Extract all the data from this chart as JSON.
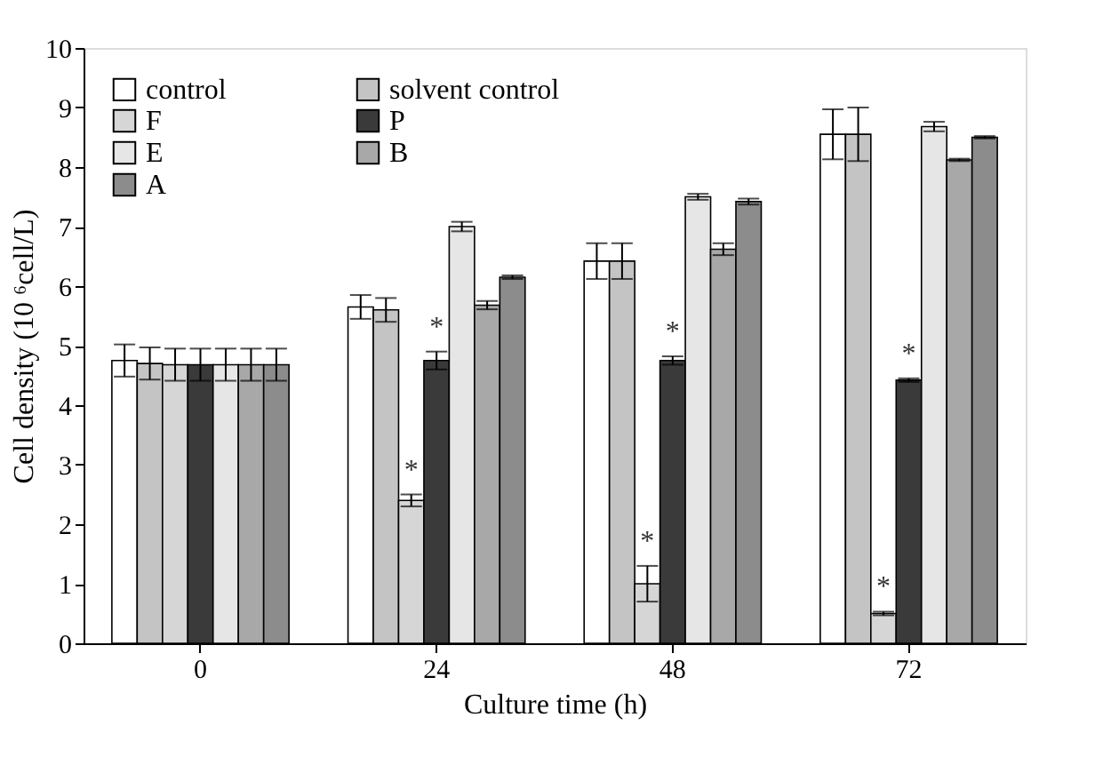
{
  "chart_data": {
    "type": "bar",
    "xlabel": "Culture time (h)",
    "ylabel": "Cell density (10 ⁶cell/L)",
    "categories": [
      "0",
      "24",
      "48",
      "72"
    ],
    "series": [
      {
        "name": "control",
        "color": "#ffffff",
        "values": [
          4.75,
          5.65,
          6.42,
          8.55
        ],
        "errors": [
          0.27,
          0.2,
          0.3,
          0.42
        ]
      },
      {
        "name": "solvent control",
        "color": "#c4c4c4",
        "values": [
          4.7,
          5.6,
          6.42,
          8.55
        ],
        "errors": [
          0.27,
          0.2,
          0.3,
          0.45
        ]
      },
      {
        "name": "F",
        "color": "#d6d6d6",
        "values": [
          4.68,
          2.4,
          1.0,
          0.5
        ],
        "errors": [
          0.27,
          0.1,
          0.3,
          0.03
        ],
        "value_labels": [
          null,
          "*",
          "*",
          "*"
        ]
      },
      {
        "name": "P",
        "color": "#3a3a3a",
        "values": [
          4.68,
          4.75,
          4.75,
          4.42
        ],
        "errors": [
          0.27,
          0.15,
          0.07,
          0.03
        ],
        "value_labels": [
          null,
          "*",
          "*",
          "*"
        ]
      },
      {
        "name": "E",
        "color": "#e6e6e6",
        "values": [
          4.68,
          7.0,
          7.5,
          8.68
        ],
        "errors": [
          0.27,
          0.08,
          0.05,
          0.08
        ]
      },
      {
        "name": "B",
        "color": "#a8a8a8",
        "values": [
          4.68,
          5.68,
          6.62,
          8.12
        ],
        "errors": [
          0.27,
          0.07,
          0.1,
          0.02
        ]
      },
      {
        "name": "A",
        "color": "#8c8c8c",
        "values": [
          4.68,
          6.15,
          7.42,
          8.5
        ],
        "errors": [
          0.27,
          0.03,
          0.05,
          0.02
        ]
      }
    ],
    "ylim": [
      0,
      10
    ],
    "yticks": [
      0,
      1,
      2,
      3,
      4,
      5,
      6,
      7,
      8,
      9,
      10
    ],
    "grid": false,
    "legend": "top left"
  }
}
